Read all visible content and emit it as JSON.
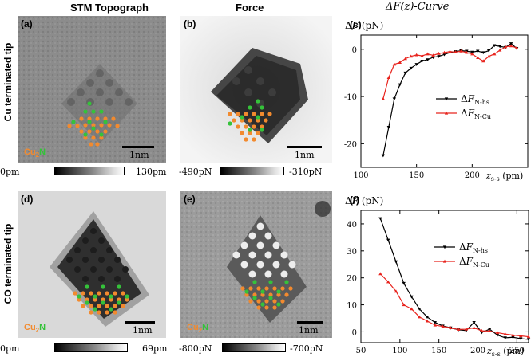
{
  "column_titles": {
    "stm": "STM Topograph",
    "force": "Force",
    "curve": "ΔF(z)-Curve"
  },
  "row_labels": {
    "top": "Cu terminated tip",
    "bottom": "CO terminated tip"
  },
  "panels": {
    "a": {
      "label": "(a)",
      "scale": "1nm",
      "molecule_prefix": "Cu",
      "molecule_sub": "2",
      "molecule_suffix": "N",
      "cbar_min": "0pm",
      "cbar_max": "130pm"
    },
    "b": {
      "label": "(b)",
      "scale": "1nm",
      "cbar_min": "-490pN",
      "cbar_max": "-310pN"
    },
    "c": {
      "label": "(c)"
    },
    "d": {
      "label": "(d)",
      "scale": "1nm",
      "molecule_prefix": "Cu",
      "molecule_sub": "2",
      "molecule_suffix": "N",
      "cbar_min": "0pm",
      "cbar_max": "69pm"
    },
    "e": {
      "label": "(e)",
      "scale": "1nm",
      "molecule_prefix": "Cu",
      "molecule_sub": "2",
      "molecule_suffix": "N",
      "cbar_min": "-800pN",
      "cbar_max": "-700pN"
    },
    "f": {
      "label": "(f)"
    }
  },
  "colors": {
    "orange": "#f28a2e",
    "green": "#35c23a",
    "black_series": "#000000",
    "red_series": "#e8241e"
  },
  "chart_data": [
    {
      "id": "c",
      "type": "line",
      "title": "ΔF (pN)",
      "ylabel": "ΔF (pN)",
      "xlabel": "z_s-s (pm)",
      "xlim": [
        100,
        250
      ],
      "ylim": [
        -25,
        3
      ],
      "xticks": [
        100,
        150,
        200
      ],
      "yticks": [
        0,
        -10,
        -20
      ],
      "legend_position": "center-right",
      "series": [
        {
          "name": "ΔF_N-hs",
          "color": "#000000",
          "x": [
            120,
            125,
            130,
            135,
            140,
            145,
            150,
            155,
            160,
            165,
            170,
            175,
            180,
            185,
            190,
            195,
            200,
            205,
            210,
            215,
            220,
            225,
            230,
            235,
            240
          ],
          "y": [
            -22.5,
            -16.5,
            -10.5,
            -7.5,
            -5,
            -4,
            -3.2,
            -2.5,
            -2.2,
            -1.7,
            -1.5,
            -1.1,
            -0.7,
            -0.5,
            -0.3,
            -0.4,
            -0.6,
            -0.4,
            -0.7,
            -0.3,
            0.8,
            0.6,
            0.4,
            1.2,
            0.2
          ]
        },
        {
          "name": "ΔF_N-Cu",
          "color": "#e8241e",
          "x": [
            120,
            125,
            130,
            135,
            140,
            145,
            150,
            155,
            160,
            165,
            170,
            175,
            180,
            185,
            190,
            195,
            200,
            205,
            210,
            215,
            220,
            225,
            230,
            235,
            240
          ],
          "y": [
            -10.5,
            -6,
            -3.2,
            -2.8,
            -2,
            -1.5,
            -1.2,
            -1.4,
            -1.0,
            -1.3,
            -0.9,
            -0.7,
            -0.5,
            -0.6,
            -0.4,
            -0.7,
            -1.0,
            -1.8,
            -2.5,
            -1.5,
            -1.0,
            -0.2,
            0.5,
            0.7,
            0.3
          ]
        }
      ]
    },
    {
      "id": "f",
      "type": "line",
      "title": "ΔF (pN)",
      "ylabel": "ΔF (pN)",
      "xlabel": "z_s-s (pm)",
      "xlim": [
        50,
        265
      ],
      "ylim": [
        -4,
        45
      ],
      "xticks": [
        50,
        100,
        150,
        200,
        250
      ],
      "yticks": [
        0,
        10,
        20,
        30,
        40
      ],
      "legend_position": "center-right",
      "series": [
        {
          "name": "ΔF_N-hs",
          "color": "#000000",
          "x": [
            75,
            85,
            95,
            105,
            115,
            125,
            135,
            145,
            155,
            165,
            175,
            185,
            195,
            205,
            215,
            225,
            235,
            245,
            255,
            265
          ],
          "y": [
            42,
            34,
            26,
            18,
            13,
            8.5,
            5.5,
            3.5,
            2.2,
            1.5,
            0.8,
            0.5,
            3.5,
            -0.2,
            1.0,
            -1.2,
            -2.2,
            -2.0,
            -2.5,
            -2.8
          ]
        },
        {
          "name": "ΔF_N-Cu",
          "color": "#e8241e",
          "x": [
            75,
            85,
            95,
            105,
            115,
            125,
            135,
            145,
            155,
            165,
            175,
            185,
            195,
            205,
            215,
            225,
            235,
            245,
            255,
            265
          ],
          "y": [
            21.5,
            18.5,
            15,
            10,
            8.5,
            5.5,
            4,
            2.5,
            2.0,
            1.5,
            0.9,
            1.0,
            1.5,
            0.4,
            0.3,
            -0.3,
            -0.8,
            -1.2,
            -1.5,
            -1.8
          ]
        }
      ]
    }
  ]
}
